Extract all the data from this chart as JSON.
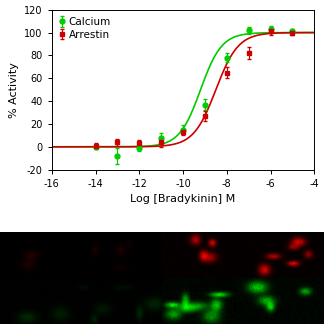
{
  "calcium_x": [
    -14,
    -13,
    -12,
    -11,
    -10,
    -9,
    -8,
    -7,
    -6,
    -5
  ],
  "calcium_y": [
    0,
    -8,
    -1,
    8,
    15,
    37,
    78,
    102,
    103,
    101
  ],
  "calcium_yerr": [
    2,
    7,
    3,
    4,
    4,
    5,
    4,
    3,
    3,
    2
  ],
  "arrestin_x": [
    -14,
    -13,
    -12,
    -11,
    -10,
    -9,
    -8,
    -7,
    -6,
    -5
  ],
  "arrestin_y": [
    1,
    4,
    3,
    4,
    13,
    27,
    65,
    82,
    101,
    100
  ],
  "arrestin_yerr": [
    2,
    3,
    3,
    4,
    3,
    4,
    5,
    5,
    3,
    2
  ],
  "calcium_color": "#00cc00",
  "arrestin_color": "#cc0000",
  "calcium_ec50": -9.2,
  "arrestin_ec50": -8.5,
  "calcium_hill": 0.9,
  "arrestin_hill": 0.85,
  "xlabel": "Log [Bradykinin] M",
  "ylabel": "% Activity",
  "xlim": [
    -16,
    -4
  ],
  "ylim": [
    -20,
    120
  ],
  "xticks": [
    -16,
    -14,
    -12,
    -10,
    -8,
    -6,
    -4
  ],
  "yticks": [
    -20,
    0,
    20,
    40,
    60,
    80,
    100,
    120
  ],
  "legend_calcium": "Calcium",
  "legend_arrestin": "Arrestin",
  "fig_width": 3.24,
  "fig_height": 3.24,
  "dpi": 100
}
